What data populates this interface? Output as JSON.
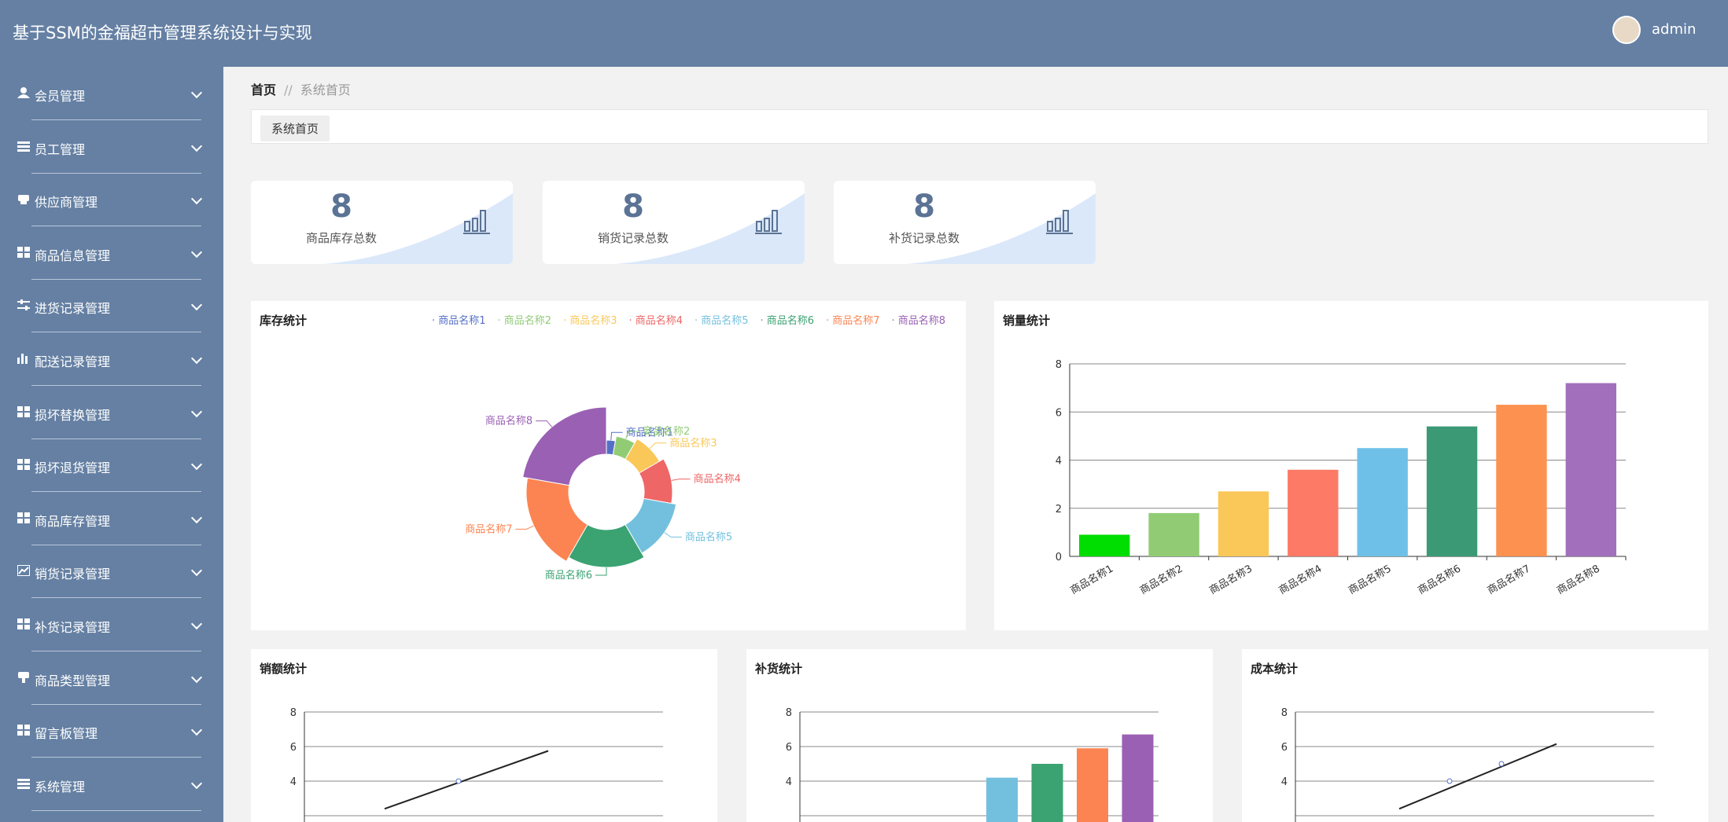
{
  "header": {
    "title": "基于SSM的金福超市管理系统设计与实现",
    "user": "admin"
  },
  "sidebar": {
    "items": [
      {
        "label": "会员管理",
        "icon": "user-icon"
      },
      {
        "label": "员工管理",
        "icon": "list-icon"
      },
      {
        "label": "供应商管理",
        "icon": "print-icon"
      },
      {
        "label": "商品信息管理",
        "icon": "grid-icon"
      },
      {
        "label": "进货记录管理",
        "icon": "sliders-icon"
      },
      {
        "label": "配送记录管理",
        "icon": "bar-chart-icon"
      },
      {
        "label": "损坏替换管理",
        "icon": "grid-icon"
      },
      {
        "label": "损坏退货管理",
        "icon": "grid-icon"
      },
      {
        "label": "商品库存管理",
        "icon": "grid-icon"
      },
      {
        "label": "销货记录管理",
        "icon": "line-chart-icon"
      },
      {
        "label": "补货记录管理",
        "icon": "grid-icon"
      },
      {
        "label": "商品类型管理",
        "icon": "brush-icon"
      },
      {
        "label": "留言板管理",
        "icon": "grid-icon"
      },
      {
        "label": "系统管理",
        "icon": "list-icon"
      }
    ]
  },
  "breadcrumb": {
    "home": "首页",
    "sep": "//",
    "current": "系统首页"
  },
  "tabs": [
    "系统首页"
  ],
  "stats": [
    {
      "value": "8",
      "label": "商品库存总数"
    },
    {
      "value": "8",
      "label": "销货记录总数"
    },
    {
      "value": "8",
      "label": "补货记录总数"
    }
  ],
  "panels": {
    "stock": "库存统计",
    "sales": "销量统计",
    "amount": "销额统计",
    "restock": "补货统计",
    "cost": "成本统计"
  },
  "colors": {
    "header": "#6580a3",
    "sidebar": "#6580a3"
  },
  "chart_data": [
    {
      "type": "pie",
      "title": "库存统计",
      "categories": [
        "商品名称1",
        "商品名称2",
        "商品名称3",
        "商品名称4",
        "商品名称5",
        "商品名称6",
        "商品名称7",
        "商品名称8"
      ],
      "values": [
        1,
        2,
        3,
        4,
        5,
        6,
        7,
        8
      ],
      "colors": [
        "#5470c6",
        "#91cc75",
        "#fac858",
        "#ee6666",
        "#73c0de",
        "#3ba272",
        "#fc8452",
        "#9a60b4"
      ],
      "legend": "top"
    },
    {
      "type": "bar",
      "title": "销量统计",
      "categories": [
        "商品名称1",
        "商品名称2",
        "商品名称3",
        "商品名称4",
        "商品名称5",
        "商品名称6",
        "商品名称7",
        "商品名称8"
      ],
      "values": [
        0.9,
        1.8,
        2.7,
        3.6,
        4.5,
        5.4,
        6.3,
        7.2
      ],
      "colors": [
        "#00dd00",
        "#91cc75",
        "#fac858",
        "#fc7a66",
        "#6fc0e8",
        "#3b9a75",
        "#fc9150",
        "#a26fbd"
      ],
      "ylim": [
        0,
        8
      ],
      "yticks": [
        "0",
        "2",
        "4",
        "6",
        "8"
      ]
    },
    {
      "type": "line",
      "title": "销额统计",
      "yticks": [
        "4",
        "6",
        "8"
      ],
      "ylim": [
        4,
        8
      ]
    },
    {
      "type": "bar",
      "title": "补货统计",
      "values": [
        4.2,
        5,
        5.9,
        6.7
      ],
      "colors": [
        "#73c0de",
        "#3ba272",
        "#fc8452",
        "#9a60b4"
      ],
      "yticks": [
        "4",
        "6",
        "8"
      ],
      "ylim": [
        4,
        8
      ]
    },
    {
      "type": "line",
      "title": "成本统计",
      "yticks": [
        "4",
        "6",
        "8"
      ],
      "ylim": [
        4,
        8
      ]
    }
  ]
}
